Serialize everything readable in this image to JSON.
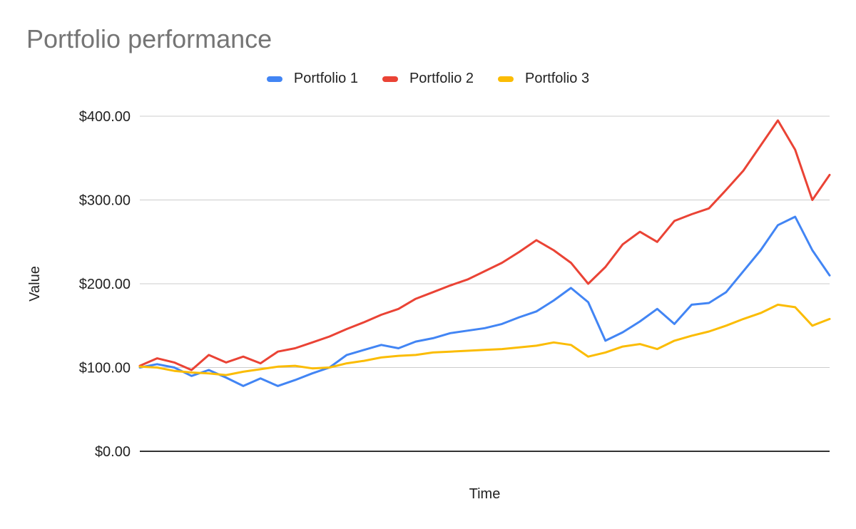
{
  "chart_data": {
    "type": "line",
    "title": "Portfolio performance",
    "xlabel": "Time",
    "ylabel": "Value",
    "ylim": [
      0,
      400
    ],
    "y_ticks": [
      "$0.00",
      "$100.00",
      "$200.00",
      "$300.00",
      "$400.00"
    ],
    "y_tick_values": [
      0,
      100,
      200,
      300,
      400
    ],
    "grid": true,
    "legend_position": "top",
    "x": [
      0,
      10,
      20,
      30,
      40,
      50,
      60,
      70,
      80,
      90,
      100,
      110,
      120,
      130,
      140,
      150,
      160,
      170,
      180,
      190,
      200,
      210,
      220,
      230,
      240,
      250,
      260,
      270,
      280,
      290,
      300,
      310,
      320,
      330,
      340,
      350,
      360,
      370,
      380,
      390,
      400
    ],
    "series": [
      {
        "name": "Portfolio 1",
        "color": "#4285f4",
        "values": [
          100,
          104,
          100,
          90,
          97,
          88,
          78,
          87,
          78,
          85,
          93,
          100,
          115,
          121,
          127,
          123,
          131,
          135,
          141,
          144,
          147,
          152,
          160,
          167,
          180,
          195,
          178,
          132,
          142,
          155,
          170,
          152,
          175,
          177,
          190,
          215,
          240,
          270,
          280,
          240,
          210
        ]
      },
      {
        "name": "Portfolio 2",
        "color": "#ea4335",
        "values": [
          102,
          111,
          106,
          97,
          115,
          106,
          113,
          105,
          119,
          123,
          130,
          137,
          146,
          154,
          163,
          170,
          182,
          190,
          198,
          205,
          215,
          225,
          238,
          252,
          240,
          225,
          200,
          220,
          247,
          262,
          250,
          275,
          283,
          290,
          312,
          335,
          365,
          395,
          360,
          300,
          330
        ]
      },
      {
        "name": "Portfolio 3",
        "color": "#fbbc04",
        "values": [
          101,
          100,
          96,
          94,
          93,
          91,
          95,
          98,
          101,
          102,
          99,
          100,
          105,
          108,
          112,
          114,
          115,
          118,
          119,
          120,
          121,
          122,
          124,
          126,
          130,
          127,
          113,
          118,
          125,
          128,
          122,
          132,
          138,
          143,
          150,
          158,
          165,
          175,
          172,
          150,
          158
        ]
      }
    ]
  }
}
